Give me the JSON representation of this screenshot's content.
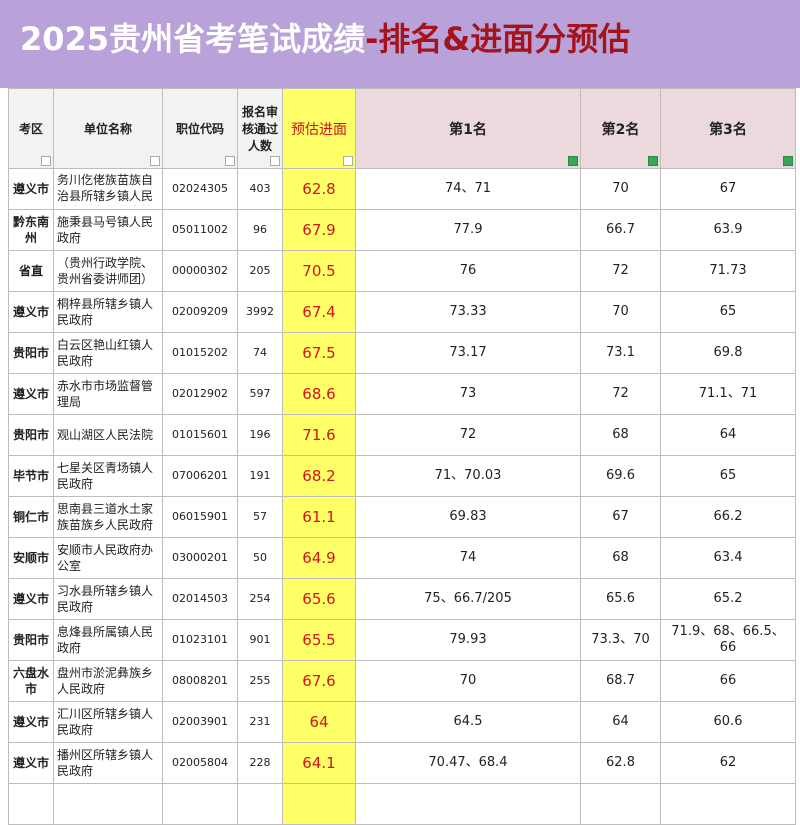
{
  "header": {
    "title_main": "2025贵州省考笔试成绩",
    "title_highlight": "-排名&进面分预估"
  },
  "table": {
    "columns": [
      "考区",
      "单位名称",
      "职位代码",
      "报名审核通过人数",
      "预估进面",
      "第1名",
      "第2名",
      "第3名"
    ],
    "rows": [
      [
        "遵义市",
        "务川仡佬族苗族自治县所辖乡镇人民政府（街道办事处）",
        "02024305",
        403,
        62.8,
        "74、71",
        70,
        67
      ],
      [
        "黔东南州",
        "施秉县马号镇人民政府",
        "05011002",
        96,
        67.9,
        77.9,
        66.7,
        63.9
      ],
      [
        "省直",
        "（贵州行政学院、贵州省委讲师团）",
        "00000302",
        205,
        70.5,
        76,
        72,
        71.73
      ],
      [
        "遵义市",
        "桐梓县所辖乡镇人民政府",
        "02009209",
        3992,
        67.4,
        73.33,
        70,
        65
      ],
      [
        "贵阳市",
        "白云区艳山红镇人民政府",
        "01015202",
        74,
        67.5,
        73.17,
        73.1,
        69.8
      ],
      [
        "遵义市",
        "赤水市市场监督管理局",
        "02012902",
        597,
        68.6,
        73,
        72,
        "71.1、71"
      ],
      [
        "贵阳市",
        "观山湖区人民法院",
        "01015601",
        196,
        71.6,
        72,
        68,
        64
      ],
      [
        "毕节市",
        "七星关区青场镇人民政府",
        "07006201",
        191,
        68.2,
        "71、70.03",
        69.6,
        65
      ],
      [
        "铜仁市",
        "思南县三道水土家族苗族乡人民政府",
        "06015901",
        57,
        61.1,
        69.83,
        67,
        66.2
      ],
      [
        "安顺市",
        "安顺市人民政府办公室",
        "03000201",
        50,
        64.9,
        74,
        68,
        63.4
      ],
      [
        "遵义市",
        "习水县所辖乡镇人民政府",
        "02014503",
        254,
        65.6,
        "75、66.7/205",
        65.6,
        65.2
      ],
      [
        "贵阳市",
        "息烽县所属镇人民政府",
        "01023101",
        901,
        65.5,
        79.93,
        "73.3、70",
        "71.9、68、66.5、66"
      ],
      [
        "六盘水市",
        "盘州市淤泥彝族乡人民政府",
        "08008201",
        255,
        67.6,
        70,
        68.7,
        66
      ],
      [
        "遵义市",
        "汇川区所辖乡镇人民政府",
        "02003901",
        231,
        64,
        64.5,
        64,
        60.6
      ],
      [
        "遵义市",
        "播州区所辖乡镇人民政府",
        "02005804",
        228,
        64.1,
        "70.47、68.4",
        62.8,
        62
      ]
    ]
  }
}
